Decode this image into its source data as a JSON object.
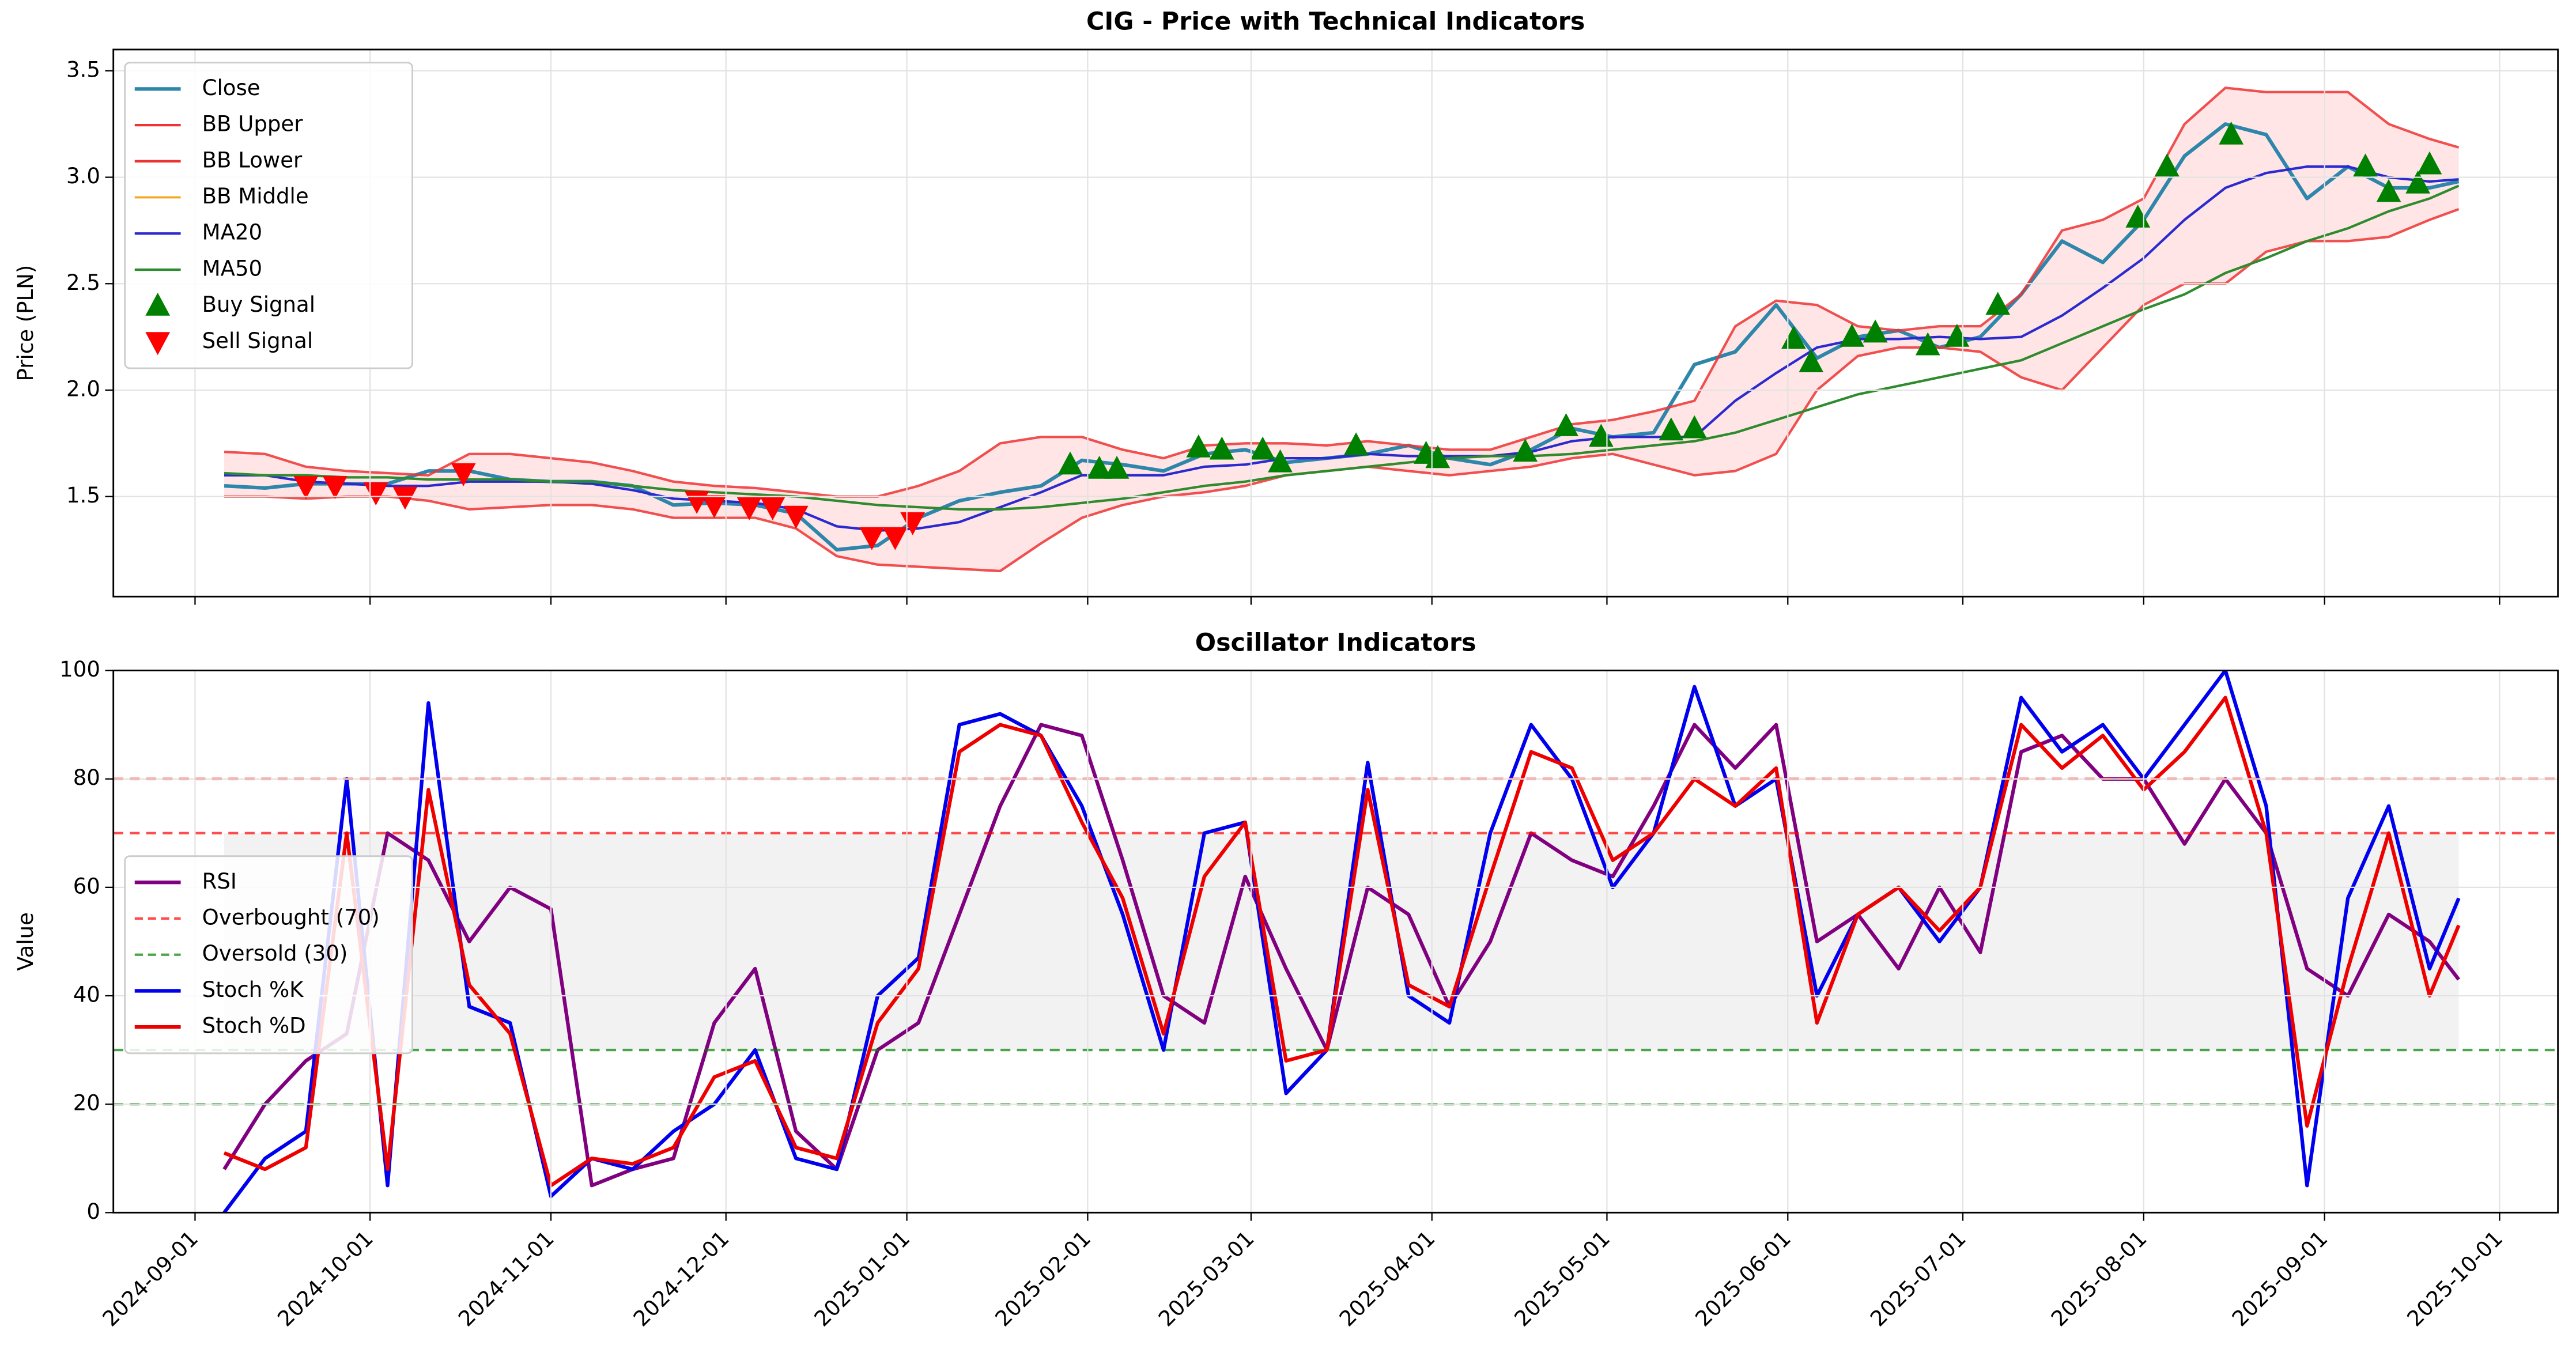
{
  "chart_data": [
    {
      "type": "line",
      "title": "CIG - Price with Technical Indicators",
      "ylabel": "Price (PLN)",
      "legend": "upper left",
      "grid": true,
      "xlim": [
        "2024-08-18",
        "2025-10-11"
      ],
      "xticks": [
        "2024-09-01",
        "2024-10-01",
        "2024-11-01",
        "2024-12-01",
        "2025-01-01",
        "2025-02-01",
        "2025-03-01",
        "2025-04-01",
        "2025-05-01",
        "2025-06-01",
        "2025-07-01",
        "2025-08-01",
        "2025-09-01",
        "2025-10-01"
      ],
      "ylim": [
        1.03,
        3.6
      ],
      "yticks": [
        1.5,
        {
          "value": 2.0,
          "label": "2.0"
        },
        2.5,
        {
          "value": 3.0,
          "label": "3.0"
        },
        3.5
      ],
      "x": [
        "2024-09-06",
        "2024-09-13",
        "2024-09-20",
        "2024-09-27",
        "2024-10-04",
        "2024-10-11",
        "2024-10-18",
        "2024-10-25",
        "2024-11-01",
        "2024-11-08",
        "2024-11-15",
        "2024-11-22",
        "2024-11-29",
        "2024-12-06",
        "2024-12-13",
        "2024-12-20",
        "2024-12-27",
        "2025-01-03",
        "2025-01-10",
        "2025-01-17",
        "2025-01-24",
        "2025-01-31",
        "2025-02-07",
        "2025-02-14",
        "2025-02-21",
        "2025-02-28",
        "2025-03-07",
        "2025-03-14",
        "2025-03-21",
        "2025-03-28",
        "2025-04-04",
        "2025-04-11",
        "2025-04-18",
        "2025-04-25",
        "2025-05-02",
        "2025-05-09",
        "2025-05-16",
        "2025-05-23",
        "2025-05-30",
        "2025-06-06",
        "2025-06-13",
        "2025-06-20",
        "2025-06-27",
        "2025-07-04",
        "2025-07-11",
        "2025-07-18",
        "2025-07-25",
        "2025-08-01",
        "2025-08-08",
        "2025-08-15",
        "2025-08-22",
        "2025-08-29",
        "2025-09-05",
        "2025-09-12",
        "2025-09-19",
        "2025-09-24"
      ],
      "fill_between": {
        "series": [
          "BB Upper",
          "BB Lower"
        ],
        "color": "rgba(255,0,0,0.1)"
      },
      "series": [
        {
          "name": "Close",
          "color": "#2e86ab",
          "width": 2.2,
          "values": [
            1.55,
            1.54,
            1.56,
            1.56,
            1.56,
            1.62,
            1.62,
            1.58,
            1.57,
            1.57,
            1.55,
            1.46,
            1.47,
            1.46,
            1.42,
            1.25,
            1.27,
            1.4,
            1.48,
            1.52,
            1.55,
            1.67,
            1.65,
            1.62,
            1.7,
            1.72,
            1.66,
            1.68,
            1.7,
            1.74,
            1.68,
            1.65,
            1.72,
            1.82,
            1.78,
            1.8,
            2.12,
            2.18,
            2.4,
            2.15,
            2.25,
            2.28,
            2.2,
            2.25,
            2.45,
            2.7,
            2.6,
            2.8,
            3.1,
            3.25,
            3.2,
            2.9,
            3.05,
            2.95,
            2.95,
            2.98
          ]
        },
        {
          "name": "BB Upper",
          "color": "#ee3333",
          "width": 1.5,
          "values": [
            1.71,
            1.7,
            1.64,
            1.62,
            1.61,
            1.6,
            1.7,
            1.7,
            1.68,
            1.66,
            1.62,
            1.57,
            1.55,
            1.54,
            1.52,
            1.5,
            1.5,
            1.55,
            1.62,
            1.75,
            1.78,
            1.78,
            1.72,
            1.68,
            1.74,
            1.75,
            1.75,
            1.74,
            1.76,
            1.74,
            1.72,
            1.72,
            1.78,
            1.84,
            1.86,
            1.9,
            1.95,
            2.3,
            2.42,
            2.4,
            2.3,
            2.28,
            2.3,
            2.3,
            2.45,
            2.75,
            2.8,
            2.9,
            3.25,
            3.42,
            3.4,
            3.4,
            3.4,
            3.25,
            3.18,
            3.14
          ]
        },
        {
          "name": "BB Lower",
          "color": "#ee3333",
          "width": 1.5,
          "values": [
            1.5,
            1.5,
            1.49,
            1.5,
            1.5,
            1.48,
            1.44,
            1.45,
            1.46,
            1.46,
            1.44,
            1.4,
            1.4,
            1.4,
            1.35,
            1.22,
            1.18,
            1.17,
            1.16,
            1.15,
            1.28,
            1.4,
            1.46,
            1.5,
            1.52,
            1.55,
            1.6,
            1.62,
            1.64,
            1.62,
            1.6,
            1.62,
            1.64,
            1.68,
            1.7,
            1.65,
            1.6,
            1.62,
            1.7,
            2.0,
            2.16,
            2.2,
            2.2,
            2.18,
            2.06,
            2.0,
            2.2,
            2.4,
            2.5,
            2.5,
            2.65,
            2.7,
            2.7,
            2.72,
            2.8,
            2.85
          ]
        },
        {
          "name": "BB Middle",
          "color": "#f5a623",
          "width": 1.3,
          "values": [
            1.6,
            1.6,
            1.57,
            1.56,
            1.55,
            1.55,
            1.57,
            1.57,
            1.57,
            1.56,
            1.53,
            1.49,
            1.48,
            1.47,
            1.44,
            1.36,
            1.34,
            1.35,
            1.38,
            1.45,
            1.52,
            1.6,
            1.6,
            1.6,
            1.64,
            1.65,
            1.68,
            1.68,
            1.7,
            1.69,
            1.69,
            1.69,
            1.71,
            1.76,
            1.78,
            1.78,
            1.78,
            1.95,
            2.08,
            2.2,
            2.24,
            2.24,
            2.25,
            2.24,
            2.25,
            2.35,
            2.48,
            2.62,
            2.8,
            2.95,
            3.02,
            3.05,
            3.05,
            3.0,
            2.98,
            2.99
          ]
        },
        {
          "name": "MA20",
          "color": "#2a2ad0",
          "width": 1.5,
          "values": [
            1.6,
            1.6,
            1.57,
            1.56,
            1.55,
            1.55,
            1.57,
            1.57,
            1.57,
            1.56,
            1.53,
            1.49,
            1.48,
            1.47,
            1.44,
            1.36,
            1.34,
            1.35,
            1.38,
            1.45,
            1.52,
            1.6,
            1.6,
            1.6,
            1.64,
            1.65,
            1.68,
            1.68,
            1.7,
            1.69,
            1.69,
            1.69,
            1.71,
            1.76,
            1.78,
            1.78,
            1.78,
            1.95,
            2.08,
            2.2,
            2.24,
            2.24,
            2.25,
            2.24,
            2.25,
            2.35,
            2.48,
            2.62,
            2.8,
            2.95,
            3.02,
            3.05,
            3.05,
            3.0,
            2.98,
            2.99
          ]
        },
        {
          "name": "MA50",
          "color": "#2e8b2e",
          "width": 1.5,
          "values": [
            1.61,
            1.6,
            1.6,
            1.59,
            1.59,
            1.58,
            1.58,
            1.58,
            1.57,
            1.57,
            1.55,
            1.53,
            1.52,
            1.51,
            1.5,
            1.48,
            1.46,
            1.45,
            1.44,
            1.44,
            1.45,
            1.47,
            1.49,
            1.52,
            1.55,
            1.57,
            1.6,
            1.62,
            1.64,
            1.66,
            1.68,
            1.69,
            1.69,
            1.7,
            1.72,
            1.74,
            1.76,
            1.8,
            1.86,
            1.92,
            1.98,
            2.02,
            2.06,
            2.1,
            2.14,
            2.22,
            2.3,
            2.38,
            2.45,
            2.55,
            2.62,
            2.7,
            2.76,
            2.84,
            2.9,
            2.96
          ]
        },
        {
          "name": "Buy Signal",
          "color": "#008000",
          "marker": "up",
          "x": [
            "2025-01-29",
            "2025-02-03",
            "2025-02-06",
            "2025-02-20",
            "2025-02-24",
            "2025-03-03",
            "2025-03-06",
            "2025-03-19",
            "2025-03-31",
            "2025-04-02",
            "2025-04-17",
            "2025-04-24",
            "2025-04-30",
            "2025-05-12",
            "2025-05-16",
            "2025-06-02",
            "2025-06-05",
            "2025-06-12",
            "2025-06-16",
            "2025-06-25",
            "2025-06-30",
            "2025-07-07",
            "2025-07-31",
            "2025-08-05",
            "2025-08-16",
            "2025-09-08",
            "2025-09-12",
            "2025-09-17",
            "2025-09-19"
          ],
          "values": [
            1.65,
            1.63,
            1.63,
            1.73,
            1.72,
            1.72,
            1.66,
            1.74,
            1.7,
            1.68,
            1.71,
            1.83,
            1.78,
            1.81,
            1.82,
            2.24,
            2.13,
            2.25,
            2.27,
            2.21,
            2.25,
            2.4,
            2.81,
            3.05,
            3.2,
            3.05,
            2.93,
            2.97,
            3.06
          ]
        },
        {
          "name": "Sell Signal",
          "color": "#ff0000",
          "marker": "down",
          "x": [
            "2024-09-20",
            "2024-09-25",
            "2024-10-02",
            "2024-10-07",
            "2024-10-17",
            "2024-11-26",
            "2024-11-29",
            "2024-12-05",
            "2024-12-09",
            "2024-12-13",
            "2024-12-26",
            "2024-12-30",
            "2025-01-02"
          ],
          "values": [
            1.55,
            1.55,
            1.52,
            1.5,
            1.61,
            1.48,
            1.46,
            1.45,
            1.45,
            1.41,
            1.31,
            1.31,
            1.38
          ]
        }
      ]
    },
    {
      "type": "line",
      "title": "Oscillator Indicators",
      "ylabel": "Value",
      "legend": "center left",
      "grid": true,
      "xlim": [
        "2024-08-18",
        "2025-10-11"
      ],
      "xticks": [
        "2024-09-01",
        "2024-10-01",
        "2024-11-01",
        "2024-12-01",
        "2025-01-01",
        "2025-02-01",
        "2025-03-01",
        "2025-04-01",
        "2025-05-01",
        "2025-06-01",
        "2025-07-01",
        "2025-08-01",
        "2025-09-01",
        "2025-10-01"
      ],
      "ylim": [
        0,
        100
      ],
      "yticks": [
        0,
        20,
        40,
        60,
        80,
        100
      ],
      "x": [
        "2024-09-06",
        "2024-09-13",
        "2024-09-20",
        "2024-09-27",
        "2024-10-04",
        "2024-10-11",
        "2024-10-18",
        "2024-10-25",
        "2024-11-01",
        "2024-11-08",
        "2024-11-15",
        "2024-11-22",
        "2024-11-29",
        "2024-12-06",
        "2024-12-13",
        "2024-12-20",
        "2024-12-27",
        "2025-01-03",
        "2025-01-10",
        "2025-01-17",
        "2025-01-24",
        "2025-01-31",
        "2025-02-07",
        "2025-02-14",
        "2025-02-21",
        "2025-02-28",
        "2025-03-07",
        "2025-03-14",
        "2025-03-21",
        "2025-03-28",
        "2025-04-04",
        "2025-04-11",
        "2025-04-18",
        "2025-04-25",
        "2025-05-02",
        "2025-05-09",
        "2025-05-16",
        "2025-05-23",
        "2025-05-30",
        "2025-06-06",
        "2025-06-13",
        "2025-06-20",
        "2025-06-27",
        "2025-07-04",
        "2025-07-11",
        "2025-07-18",
        "2025-07-25",
        "2025-08-01",
        "2025-08-08",
        "2025-08-15",
        "2025-08-22",
        "2025-08-29",
        "2025-09-05",
        "2025-09-12",
        "2025-09-19",
        "2025-09-24"
      ],
      "shade_between": {
        "series": [
          "Overbought (70)",
          "Oversold (30)"
        ],
        "color": "rgba(128,128,128,0.1)"
      },
      "series": [
        {
          "name": "RSI",
          "color": "#800080",
          "width": 2.2,
          "values": [
            8,
            20,
            28,
            33,
            70,
            65,
            50,
            60,
            56,
            5,
            8,
            10,
            35,
            45,
            15,
            8,
            30,
            35,
            55,
            75,
            90,
            88,
            65,
            40,
            35,
            62,
            45,
            30,
            60,
            55,
            38,
            50,
            70,
            65,
            62,
            75,
            90,
            82,
            90,
            50,
            55,
            45,
            60,
            48,
            85,
            88,
            80,
            80,
            68,
            80,
            70,
            45,
            40,
            55,
            50,
            43
          ]
        },
        {
          "name": "Overbought (70)",
          "color": "#ff0000",
          "hline": 70,
          "dash": true
        },
        {
          "name": "Oversold (30)",
          "color": "#008000",
          "hline": 30,
          "dash": true
        },
        {
          "name": "Stoch %K",
          "color": "#0000ee",
          "width": 2.2,
          "values": [
            0,
            10,
            15,
            80,
            5,
            94,
            38,
            35,
            3,
            10,
            8,
            15,
            20,
            30,
            10,
            8,
            40,
            47,
            90,
            92,
            88,
            75,
            55,
            30,
            70,
            72,
            22,
            30,
            83,
            40,
            35,
            70,
            90,
            80,
            60,
            70,
            97,
            75,
            80,
            40,
            55,
            60,
            50,
            60,
            95,
            85,
            90,
            80,
            90,
            100,
            75,
            5,
            58,
            75,
            45,
            58
          ]
        },
        {
          "name": "Stoch %D",
          "color": "#ee0000",
          "width": 2.2,
          "values": [
            11,
            8,
            12,
            70,
            8,
            78,
            42,
            33,
            5,
            10,
            9,
            12,
            25,
            28,
            12,
            10,
            35,
            45,
            85,
            90,
            88,
            72,
            58,
            33,
            62,
            72,
            28,
            30,
            78,
            42,
            38,
            62,
            85,
            82,
            65,
            70,
            80,
            75,
            82,
            35,
            55,
            60,
            52,
            60,
            90,
            82,
            88,
            78,
            85,
            95,
            70,
            16,
            45,
            70,
            40,
            53
          ]
        },
        {
          "color": "#ff0000",
          "hline": 80,
          "dash": true
        },
        {
          "color": "#008000",
          "hline": 20,
          "dash": true
        }
      ]
    }
  ]
}
